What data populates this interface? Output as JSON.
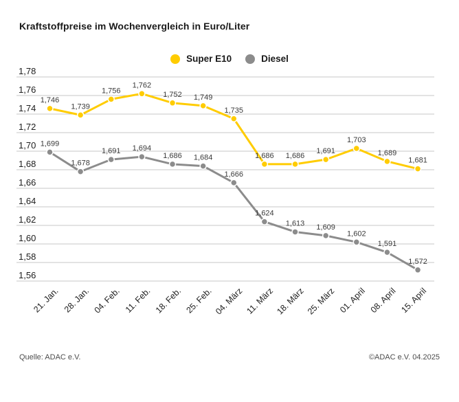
{
  "title": "Kraftstoffpreise im Wochenvergleich in Euro/Liter",
  "footer": {
    "source": "Quelle: ADAC e.V.",
    "copyright": "©ADAC e.V. 04.2025"
  },
  "colors": {
    "super_e10": "#FFCC00",
    "diesel": "#8C8C8C",
    "gridline": "#C7C7C7",
    "axis_text": "#1d1d1d",
    "value_label": "#3a3a3a"
  },
  "chart_data": {
    "type": "line",
    "title": "Kraftstoffpreise im Wochenvergleich in Euro/Liter",
    "ylabel": "Euro/Liter",
    "xlabel": "",
    "categories": [
      "21. Jan.",
      "28. Jan.",
      "04. Feb.",
      "11. Feb.",
      "18. Feb.",
      "25. Feb.",
      "04. März",
      "11. März",
      "18. März",
      "25. März",
      "01. April",
      "08. April",
      "15. April"
    ],
    "series": [
      {
        "name": "Super E10",
        "color": "#FFCC00",
        "values": [
          1.746,
          1.739,
          1.756,
          1.762,
          1.752,
          1.749,
          1.735,
          1.686,
          1.686,
          1.691,
          1.703,
          1.689,
          1.681
        ]
      },
      {
        "name": "Diesel",
        "color": "#8C8C8C",
        "values": [
          1.699,
          1.678,
          1.691,
          1.694,
          1.686,
          1.684,
          1.666,
          1.624,
          1.613,
          1.609,
          1.602,
          1.591,
          1.572
        ]
      }
    ],
    "ylim": [
      1.56,
      1.78
    ],
    "ytick_step": 0.02,
    "grid": true,
    "legend_position": "top",
    "value_labels": true,
    "decimal_separator": ","
  }
}
